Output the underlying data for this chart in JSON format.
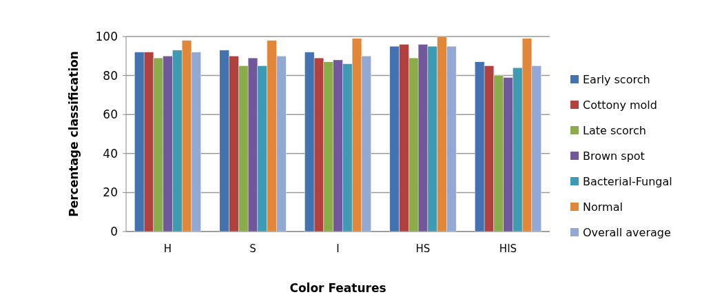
{
  "chart_data": {
    "type": "bar",
    "xlabel": "Color Features",
    "ylabel": "Percentage classification",
    "categories": [
      "H",
      "S",
      "I",
      "HS",
      "HIS"
    ],
    "ylim": [
      0,
      100
    ],
    "yticks": [
      0,
      20,
      40,
      60,
      80,
      100
    ],
    "grid": "y",
    "legend": "right",
    "series": [
      {
        "name": "Early scorch",
        "color": "#4372b0",
        "values": [
          92,
          93,
          92,
          95,
          87
        ]
      },
      {
        "name": "Cottony mold",
        "color": "#b0413e",
        "values": [
          92,
          90,
          89,
          96,
          85
        ]
      },
      {
        "name": "Late scorch",
        "color": "#8aac4a",
        "values": [
          89,
          85,
          87,
          89,
          80
        ]
      },
      {
        "name": "Brown spot",
        "color": "#71589a",
        "values": [
          90,
          89,
          88,
          96,
          79
        ]
      },
      {
        "name": "Bacterial-Fungal",
        "color": "#3d9cb3",
        "values": [
          93,
          85,
          86,
          95,
          84
        ]
      },
      {
        "name": "Normal",
        "color": "#e0873a",
        "values": [
          98,
          98,
          99,
          100,
          99
        ]
      },
      {
        "name": "Overall average",
        "color": "#93a9d4",
        "values": [
          92,
          90,
          90,
          95,
          85
        ]
      }
    ]
  }
}
